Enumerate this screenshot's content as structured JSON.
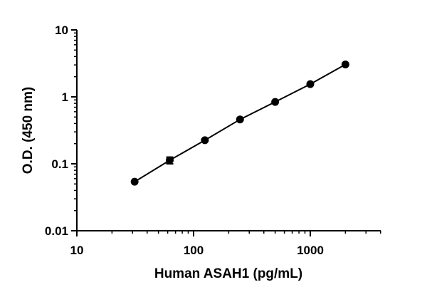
{
  "chart_data": {
    "type": "scatter",
    "xlabel": "Human ASAH1 (pg/mL)",
    "ylabel": "O.D. (450 nm)",
    "x_scale": "log",
    "y_scale": "log",
    "xlim": [
      10,
      4000
    ],
    "ylim": [
      0.01,
      10
    ],
    "grid": false,
    "legend": "none",
    "x_ticks": [
      {
        "value": 10,
        "label": "10"
      },
      {
        "value": 100,
        "label": "100"
      },
      {
        "value": 1000,
        "label": "1000"
      }
    ],
    "y_ticks": [
      {
        "value": 0.01,
        "label": "0.01"
      },
      {
        "value": 0.1,
        "label": "0.1"
      },
      {
        "value": 1,
        "label": "1"
      },
      {
        "value": 10,
        "label": "10"
      }
    ],
    "series": [
      {
        "x": [
          31.25,
          62.5,
          125,
          250,
          500,
          1000,
          2000
        ],
        "y": [
          0.054,
          0.113,
          0.225,
          0.46,
          0.84,
          1.55,
          3.05
        ],
        "y_err": [
          0.002,
          0.013,
          0.008,
          0.015,
          0.03,
          0.05,
          0.06
        ],
        "fit": "line",
        "color": "#000000"
      }
    ]
  }
}
